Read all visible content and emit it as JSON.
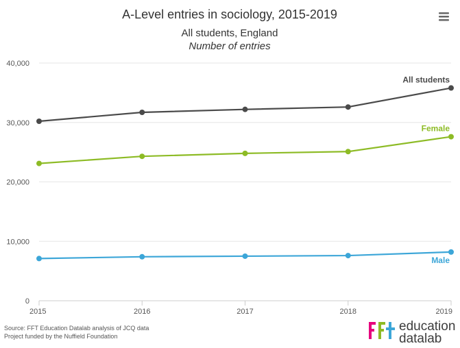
{
  "chart_data": {
    "type": "line",
    "title": "A-Level entries in sociology, 2015-2019",
    "subtitle": "All students, England",
    "subtitle2": "Number of entries",
    "x": [
      "2015",
      "2016",
      "2017",
      "2018",
      "2019"
    ],
    "ylim": [
      0,
      40000
    ],
    "yticks": [
      0,
      10000,
      20000,
      30000,
      40000
    ],
    "ytick_labels": [
      "0",
      "10,000",
      "20,000",
      "30,000",
      "40,000"
    ],
    "grid": true,
    "series": [
      {
        "name": "All students",
        "color": "#4a4a4a",
        "values": [
          30200,
          31700,
          32200,
          32600,
          35800
        ]
      },
      {
        "name": "Female",
        "color": "#8dbb25",
        "values": [
          23100,
          24300,
          24800,
          25100,
          27600
        ]
      },
      {
        "name": "Male",
        "color": "#3ca6d8",
        "values": [
          7100,
          7400,
          7500,
          7600,
          8200
        ]
      }
    ],
    "source_lines": [
      "Source: FFT Education Datalab analysis of JCQ data",
      "Project funded by the Nuffield Foundation"
    ]
  },
  "logo": {
    "word1": "education",
    "word2": "datalab"
  },
  "menu": {
    "icon": "hamburger-menu-icon"
  }
}
